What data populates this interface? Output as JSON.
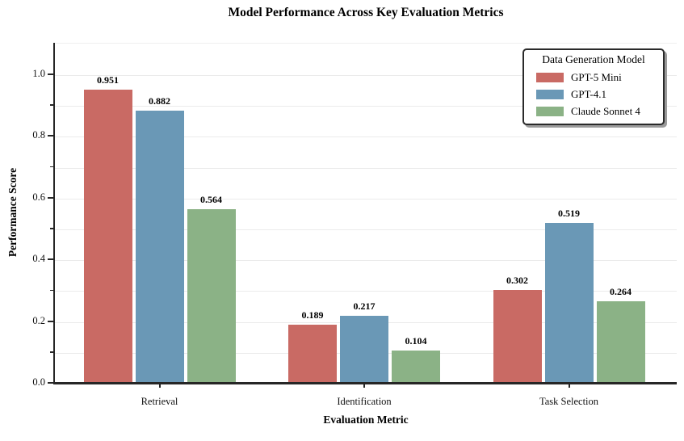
{
  "chart_data": {
    "type": "bar",
    "title": "Model Performance Across Key Evaluation Metrics",
    "xlabel": "Evaluation Metric",
    "ylabel": "Performance Score",
    "categories": [
      "Retrieval",
      "Identification",
      "Task Selection"
    ],
    "series": [
      {
        "name": "GPT-5 Mini",
        "color": "#C96A64",
        "values": [
          0.951,
          0.189,
          0.302
        ]
      },
      {
        "name": "GPT-4.1",
        "color": "#6A98B6",
        "values": [
          0.882,
          0.217,
          0.519
        ]
      },
      {
        "name": "Claude Sonnet 4",
        "color": "#8BB286",
        "values": [
          0.564,
          0.104,
          0.264
        ]
      }
    ],
    "value_labels": [
      "0.951",
      "0.882",
      "0.564",
      "0.189",
      "0.217",
      "0.104",
      "0.302",
      "0.519",
      "0.264"
    ],
    "ylim": [
      0,
      1.1
    ],
    "ytick_labels": [
      "0.0",
      "0.2",
      "0.4",
      "0.6",
      "0.8",
      "1.0"
    ],
    "ytick_minor_step": 0.1,
    "grid": "horizontal, every 0.1, light gray",
    "legend": {
      "title": "Data Generation Model",
      "position": "upper-right"
    },
    "colors": {
      "grid": "#EBEBEB",
      "spine": "#262626",
      "background": "#FFFFFF"
    }
  }
}
